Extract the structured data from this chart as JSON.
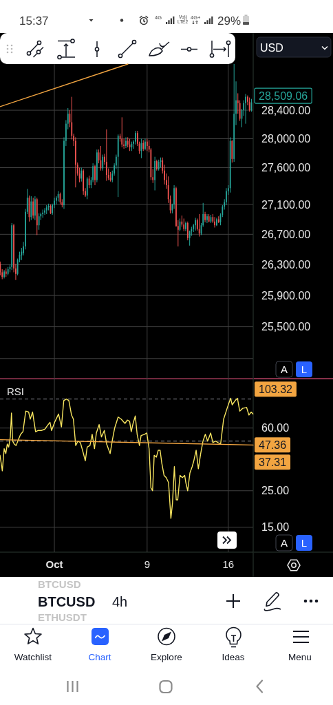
{
  "chart_data": [
    {
      "type": "candlestick",
      "title": "BTCUSD",
      "subtitle": "4h",
      "x": [
        -3.67,
        -3.5,
        -3.33,
        -3.17,
        -3,
        -2.83,
        -2.67,
        -2.5,
        -2.33,
        -2.17,
        -2,
        -1.83,
        -1.67,
        -1.5,
        -1.33,
        -1.17,
        -1,
        -0.83,
        -0.67,
        -0.5,
        -0.33,
        -0.17,
        0,
        0.17,
        0.33,
        0.5,
        0.67,
        0.83,
        1,
        1.17,
        1.33,
        1.5,
        1.67,
        1.83,
        2,
        2.17,
        2.33,
        2.5,
        2.67,
        2.83,
        3,
        3.17,
        3.33,
        3.5,
        3.67,
        3.83,
        4,
        4.17,
        4.33,
        4.5,
        4.67,
        4.83,
        5,
        5.17,
        5.33,
        5.5,
        5.67,
        5.83,
        6,
        6.17,
        6.33,
        6.5,
        6.67,
        6.83,
        7,
        7.17,
        7.33,
        7.5,
        7.67,
        7.83,
        8,
        8.17,
        8.33,
        8.5,
        8.67,
        8.83,
        9,
        9.17,
        9.33,
        9.5,
        9.67,
        9.83,
        10,
        10.17,
        10.33,
        10.5,
        10.67,
        10.83,
        11,
        11.17,
        11.33,
        11.5,
        11.67,
        11.83,
        12,
        12.17,
        12.33,
        12.5,
        12.67,
        12.83,
        13,
        13.17,
        13.33,
        13.5,
        13.67,
        13.83,
        14,
        14.17,
        14.33,
        14.5,
        14.67,
        14.83,
        15,
        15.17,
        15.33,
        15.5,
        15.67,
        15.83,
        16,
        16.17,
        16.33,
        16.5,
        16.67,
        16.83,
        17,
        17.17,
        17.33,
        17.5,
        17.67,
        17.83,
        18
      ],
      "ohlc": [
        [
          26310,
          26340,
          26160,
          26200
        ],
        [
          26200,
          26240,
          26110,
          26140
        ],
        [
          26140,
          26230,
          26120,
          26210
        ],
        [
          26210,
          26250,
          26140,
          26180
        ],
        [
          26180,
          26270,
          26160,
          26240
        ],
        [
          26240,
          26300,
          26200,
          26270
        ],
        [
          26270,
          26850,
          26230,
          26820
        ],
        [
          26820,
          26840,
          26200,
          26250
        ],
        [
          26250,
          26310,
          26100,
          26180
        ],
        [
          26180,
          26380,
          26160,
          26360
        ],
        [
          26360,
          26470,
          26330,
          26430
        ],
        [
          26420,
          26520,
          26360,
          26470
        ],
        [
          26450,
          26600,
          26420,
          26540
        ],
        [
          26540,
          27040,
          26500,
          27000
        ],
        [
          27000,
          27310,
          26970,
          27190
        ],
        [
          27190,
          27220,
          26870,
          26930
        ],
        [
          26930,
          27210,
          26890,
          27140
        ],
        [
          27140,
          27190,
          26910,
          26950
        ],
        [
          26950,
          27210,
          26890,
          27170
        ],
        [
          27170,
          27190,
          26690,
          26820
        ],
        [
          26820,
          26980,
          26760,
          26940
        ],
        [
          26940,
          26990,
          26890,
          26970
        ],
        [
          26970,
          27030,
          26920,
          26990
        ],
        [
          26990,
          27050,
          26960,
          27020
        ],
        [
          27020,
          27090,
          26970,
          27060
        ],
        [
          27060,
          27110,
          27020,
          27080
        ],
        [
          27080,
          27100,
          26970,
          26980
        ],
        [
          26980,
          27110,
          26960,
          27090
        ],
        [
          27090,
          27190,
          27050,
          27150
        ],
        [
          27150,
          27210,
          27100,
          27190
        ],
        [
          27190,
          27280,
          27140,
          27240
        ],
        [
          27240,
          27260,
          27100,
          27130
        ],
        [
          27130,
          27170,
          27060,
          27090
        ],
        [
          27090,
          28020,
          27040,
          27970
        ],
        [
          27970,
          28260,
          27900,
          28210
        ],
        [
          28210,
          28430,
          28130,
          28350
        ],
        [
          28350,
          28400,
          28160,
          28230
        ],
        [
          28230,
          28590,
          27990,
          28040
        ],
        [
          28040,
          28070,
          27900,
          27970
        ],
        [
          27970,
          28020,
          27330,
          27640
        ],
        [
          27640,
          27670,
          27490,
          27520
        ],
        [
          27520,
          27600,
          27400,
          27450
        ],
        [
          27450,
          27600,
          27410,
          27560
        ],
        [
          27560,
          27580,
          27230,
          27280
        ],
        [
          27280,
          27320,
          27200,
          27220
        ],
        [
          27220,
          27470,
          27170,
          27450
        ],
        [
          27450,
          27490,
          27320,
          27360
        ],
        [
          27360,
          27470,
          27320,
          27430
        ],
        [
          27430,
          27660,
          27400,
          27620
        ],
        [
          27620,
          27640,
          27360,
          27430
        ],
        [
          27430,
          27850,
          27400,
          27810
        ],
        [
          27810,
          27850,
          27660,
          27700
        ],
        [
          27700,
          27900,
          27560,
          27590
        ],
        [
          27590,
          27780,
          27560,
          27750
        ],
        [
          27750,
          27790,
          27640,
          27680
        ],
        [
          27680,
          28130,
          27420,
          27500
        ],
        [
          27500,
          27590,
          27430,
          27460
        ],
        [
          27460,
          27540,
          27410,
          27430
        ],
        [
          27430,
          27560,
          27400,
          27520
        ],
        [
          27520,
          27660,
          27490,
          27630
        ],
        [
          27630,
          27780,
          27580,
          27750
        ],
        [
          27750,
          28060,
          27200,
          28040
        ],
        [
          28040,
          28070,
          27960,
          28000
        ],
        [
          28000,
          28300,
          27880,
          27920
        ],
        [
          27920,
          28000,
          27860,
          27900
        ],
        [
          27900,
          28020,
          27870,
          27970
        ],
        [
          27970,
          28020,
          27880,
          27920
        ],
        [
          27920,
          28000,
          27830,
          27880
        ],
        [
          27880,
          27960,
          27830,
          27930
        ],
        [
          27930,
          27980,
          27860,
          27960
        ],
        [
          27960,
          28110,
          27920,
          28080
        ],
        [
          28080,
          28110,
          27900,
          27930
        ],
        [
          27930,
          27960,
          27790,
          27830
        ],
        [
          27830,
          28000,
          27730,
          27940
        ],
        [
          27940,
          27980,
          27830,
          27860
        ],
        [
          27860,
          28000,
          27840,
          27960
        ],
        [
          27960,
          28000,
          27830,
          27900
        ],
        [
          27900,
          27980,
          27810,
          27850
        ],
        [
          27850,
          27870,
          27430,
          27470
        ],
        [
          27470,
          27580,
          27390,
          27430
        ],
        [
          27430,
          27750,
          27290,
          27690
        ],
        [
          27690,
          27710,
          27560,
          27580
        ],
        [
          27580,
          27710,
          27560,
          27680
        ],
        [
          27680,
          27740,
          27600,
          27700
        ],
        [
          27700,
          27740,
          27520,
          27560
        ],
        [
          27560,
          27640,
          27370,
          27430
        ],
        [
          27430,
          27520,
          27310,
          27360
        ],
        [
          27360,
          27480,
          27120,
          27170
        ],
        [
          27170,
          27220,
          26980,
          27020
        ],
        [
          27020,
          27110,
          26980,
          27100
        ],
        [
          27100,
          27360,
          27040,
          27320
        ],
        [
          27320,
          27340,
          26800,
          26810
        ],
        [
          26810,
          26890,
          26540,
          26760
        ],
        [
          26760,
          26910,
          26740,
          26870
        ],
        [
          26870,
          26950,
          26800,
          26830
        ],
        [
          26830,
          26910,
          26740,
          26770
        ],
        [
          26770,
          26870,
          26740,
          26850
        ],
        [
          26850,
          26870,
          26620,
          26650
        ],
        [
          26650,
          26750,
          26550,
          26740
        ],
        [
          26740,
          26800,
          26680,
          26770
        ],
        [
          26770,
          26840,
          26730,
          26820
        ],
        [
          26820,
          26920,
          26750,
          26890
        ],
        [
          26890,
          26910,
          26750,
          26770
        ],
        [
          26770,
          26970,
          26670,
          26710
        ],
        [
          26710,
          26850,
          26690,
          26820
        ],
        [
          26820,
          27120,
          26800,
          26970
        ],
        [
          26970,
          27000,
          26860,
          26890
        ],
        [
          26890,
          26970,
          26850,
          26940
        ],
        [
          26940,
          26970,
          26860,
          26870
        ],
        [
          26870,
          26960,
          26850,
          26930
        ],
        [
          26930,
          26970,
          26850,
          26870
        ],
        [
          26870,
          26930,
          26790,
          26820
        ],
        [
          26820,
          26920,
          26810,
          26900
        ],
        [
          26900,
          26940,
          26850,
          26860
        ],
        [
          26860,
          26980,
          26820,
          26960
        ],
        [
          26960,
          27090,
          26930,
          27070
        ],
        [
          27070,
          27170,
          27030,
          27130
        ],
        [
          27130,
          27320,
          27090,
          27280
        ],
        [
          27280,
          27360,
          27230,
          27320
        ],
        [
          27320,
          28020,
          27260,
          27970
        ],
        [
          27970,
          27980,
          27670,
          27720
        ],
        [
          27720,
          29060,
          27680,
          28350
        ],
        [
          28350,
          28810,
          28190,
          28540
        ],
        [
          28540,
          28640,
          28350,
          28500
        ],
        [
          28500,
          28540,
          28250,
          28280
        ],
        [
          28280,
          28420,
          28160,
          28400
        ],
        [
          28400,
          28540,
          28320,
          28500
        ],
        [
          28500,
          28630,
          28210,
          28590
        ],
        [
          28590,
          28610,
          28470,
          28520
        ],
        [
          28520,
          28580,
          28380,
          28400
        ],
        [
          28400,
          28560,
          28380,
          28509.06
        ]
      ],
      "colors": [
        "#ef5350",
        "#ef5350",
        "#26a69a",
        "#ef5350",
        "#26a69a",
        "#26a69a",
        "#26a69a",
        "#ef5350",
        "#ef5350",
        "#26a69a",
        "#26a69a",
        "#26a69a",
        "#26a69a",
        "#26a69a",
        "#26a69a",
        "#ef5350",
        "#26a69a",
        "#ef5350",
        "#26a69a",
        "#ef5350",
        "#26a69a",
        "#26a69a",
        "#26a69a",
        "#26a69a",
        "#26a69a",
        "#26a69a",
        "#ef5350",
        "#26a69a",
        "#26a69a",
        "#26a69a",
        "#26a69a",
        "#ef5350",
        "#ef5350",
        "#26a69a",
        "#26a69a",
        "#26a69a",
        "#ef5350",
        "#ef5350",
        "#ef5350",
        "#ef5350",
        "#ef5350",
        "#ef5350",
        "#26a69a",
        "#ef5350",
        "#ef5350",
        "#26a69a",
        "#ef5350",
        "#26a69a",
        "#26a69a",
        "#ef5350",
        "#26a69a",
        "#ef5350",
        "#ef5350",
        "#26a69a",
        "#ef5350",
        "#ef5350",
        "#ef5350",
        "#ef5350",
        "#26a69a",
        "#26a69a",
        "#26a69a",
        "#26a69a",
        "#ef5350",
        "#ef5350",
        "#ef5350",
        "#26a69a",
        "#ef5350",
        "#ef5350",
        "#26a69a",
        "#26a69a",
        "#26a69a",
        "#ef5350",
        "#ef5350",
        "#26a69a",
        "#ef5350",
        "#26a69a",
        "#ef5350",
        "#ef5350",
        "#ef5350",
        "#ef5350",
        "#26a69a",
        "#ef5350",
        "#26a69a",
        "#26a69a",
        "#ef5350",
        "#ef5350",
        "#ef5350",
        "#ef5350",
        "#ef5350",
        "#26a69a",
        "#26a69a",
        "#ef5350",
        "#ef5350",
        "#26a69a",
        "#ef5350",
        "#ef5350",
        "#26a69a",
        "#ef5350",
        "#26a69a",
        "#26a69a",
        "#26a69a",
        "#26a69a",
        "#ef5350",
        "#ef5350",
        "#26a69a",
        "#26a69a",
        "#ef5350",
        "#26a69a",
        "#ef5350",
        "#26a69a",
        "#ef5350",
        "#ef5350",
        "#26a69a",
        "#ef5350",
        "#26a69a",
        "#26a69a",
        "#26a69a",
        "#26a69a",
        "#26a69a",
        "#26a69a",
        "#ef5350",
        "#26a69a",
        "#26a69a",
        "#ef5350",
        "#ef5350",
        "#26a69a",
        "#26a69a",
        "#26a69a",
        "#ef5350",
        "#ef5350",
        "#26a69a"
      ],
      "series": [
        {
          "type": "line",
          "color": "#f2a541",
          "x": [
            -3.69,
            7.35
          ],
          "values": [
            28450,
            29060
          ]
        }
      ],
      "xlim": [
        -3.69,
        18.15
      ],
      "xticks": [
        1,
        9,
        16
      ],
      "ylim": [
        24850,
        29060
      ],
      "yticks": [
        {
          "value": 28400,
          "label": "28,400.00"
        },
        {
          "value": 28000,
          "label": "28,000.00"
        },
        {
          "value": 27600,
          "label": "27,600.00"
        },
        {
          "value": 27100,
          "label": "27,100.00"
        },
        {
          "value": 26700,
          "label": "26,700.00"
        },
        {
          "value": 26300,
          "label": "26,300.00"
        },
        {
          "value": 25900,
          "label": "25,900.00"
        },
        {
          "value": 25500,
          "label": "25,500.00"
        },
        {
          "value": 25100,
          "label": null
        }
      ],
      "log": "y",
      "grid": true,
      "tick_labels": "y",
      "annotations": [
        "28,509.06",
        "A",
        "L"
      ]
    },
    {
      "type": "line",
      "title": "RSI",
      "series": [
        {
          "color": "#f5e35f",
          "x": [
            -3.69,
            -3.49,
            -3.33,
            -3.19,
            -3.06,
            -2.94,
            -2.8,
            -2.7,
            -2.6,
            -2.46,
            -2.3,
            -2.11,
            -1.91,
            -1.71,
            -1.47,
            -1.22,
            -1.08,
            -0.88,
            -0.62,
            -0.42,
            -0.13,
            0.17,
            0.47,
            0.62,
            0.76,
            1.02,
            1.36,
            1.61,
            1.81,
            2.05,
            2.25,
            2.48,
            2.64,
            2.84,
            3.04,
            3.24,
            3.43,
            3.67,
            3.83,
            4.07,
            4.26,
            4.46,
            4.62,
            4.86,
            5.06,
            5.31,
            5.51,
            5.81,
            6.01,
            6.2,
            6.5,
            6.76,
            7.09,
            7.29,
            7.49,
            7.63,
            7.79,
            7.98,
            8.14,
            8.34,
            8.48,
            8.78,
            8.97,
            9.17,
            9.33,
            9.47,
            9.61,
            9.8,
            9.96,
            10.12,
            10.26,
            10.46,
            10.65,
            10.85,
            11.05,
            11.19,
            11.35,
            11.51,
            11.64,
            11.84,
            12.04,
            12.24,
            12.34,
            12.5,
            12.69,
            12.89,
            13.03,
            13.23,
            13.42,
            13.62,
            13.82,
            14.02,
            14.22,
            14.48,
            14.67,
            14.91,
            15.11,
            15.34,
            15.6,
            15.9,
            16.2,
            16.34,
            16.59,
            16.79,
            16.99,
            17.24,
            17.58,
            17.78,
            17.98,
            18.13
          ],
          "values": [
            41,
            33,
            45,
            42,
            48,
            46,
            53,
            74,
            50,
            48,
            47,
            51,
            55,
            57,
            76,
            75,
            68,
            75,
            57,
            58,
            58,
            59,
            63,
            65,
            58,
            65,
            73,
            61,
            88,
            90,
            88,
            72,
            68,
            47,
            50,
            49,
            44,
            38,
            46,
            47,
            55,
            45,
            56,
            63,
            53,
            58,
            48,
            42,
            51,
            60,
            70,
            68,
            64,
            67,
            66,
            57,
            64,
            71,
            55,
            47,
            54,
            55,
            56,
            45,
            26,
            25,
            41,
            40,
            44,
            44,
            37,
            31,
            30,
            28,
            17,
            21,
            35,
            22,
            22,
            31,
            30,
            31,
            28,
            25,
            32,
            35,
            38,
            44,
            34,
            42,
            50,
            55,
            50,
            56,
            49,
            50,
            49,
            48,
            68,
            79,
            91,
            83,
            88,
            91,
            76,
            79,
            80,
            72,
            75,
            73
          ]
        },
        {
          "type": "line",
          "color": "#f2a541",
          "x": [
            -3.69,
            18.15
          ],
          "values": [
            51,
            47.36
          ]
        }
      ],
      "xlim": [
        -3.69,
        18.15
      ],
      "xticks": [
        {
          "value": 1,
          "label": "Oct"
        },
        9,
        16
      ],
      "ylim": [
        10.6,
        119.6
      ],
      "yticks": [
        {
          "value": 60,
          "label": "60.00"
        },
        {
          "value": 25,
          "label": "25.00"
        },
        {
          "value": 15,
          "label": "15.00"
        }
      ],
      "log": "y",
      "grid": true,
      "ref_lines": [
        {
          "axis": "y",
          "value": 90,
          "color": "#9598a1",
          "line_style": "dashed"
        },
        {
          "axis": "y",
          "value": 50,
          "color": "#9598a1",
          "line_style": "dashed"
        }
      ],
      "annotations": [
        "103.32",
        "47.36",
        "37.31",
        "A",
        "L"
      ]
    },
    {
      "type": "other",
      "annotations": [
        "15:37",
        "4G",
        "Vo))",
        "LTE2",
        "4G+",
        "29%",
        "USD",
        "BTCUSD",
        "ETHUSDT",
        "Watchlist",
        "Chart",
        "Explore",
        "Ideas",
        "Menu"
      ]
    }
  ]
}
